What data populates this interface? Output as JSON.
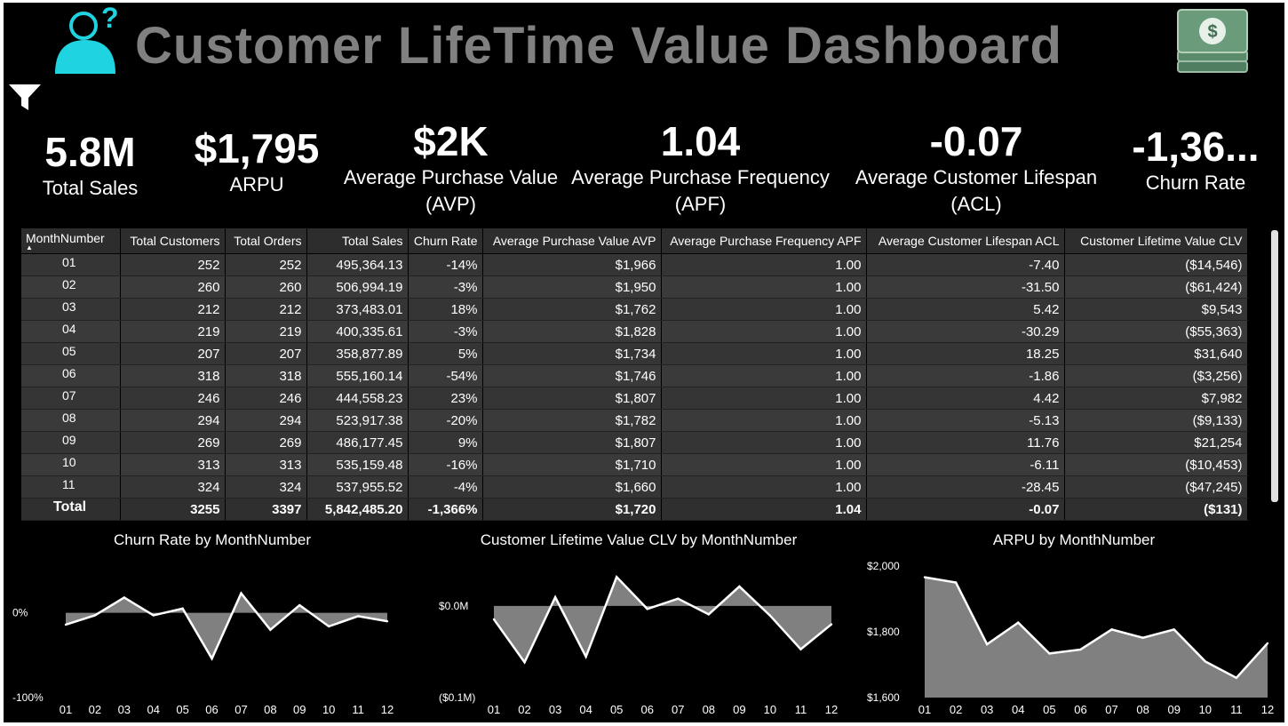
{
  "title": "Customer LifeTime Value Dashboard",
  "kpis": [
    {
      "value": "5.8M",
      "label": "Total Sales"
    },
    {
      "value": "$1,795",
      "label": "ARPU"
    },
    {
      "value": "$2K",
      "label": "Average Purchase Value",
      "label2": "(AVP)"
    },
    {
      "value": "1.04",
      "label": "Average Purchase Frequency",
      "label2": "(APF)"
    },
    {
      "value": "-0.07",
      "label": "Average Customer Lifespan",
      "label2": "(ACL)"
    },
    {
      "value": "-1,36...",
      "label": "Churn Rate"
    }
  ],
  "table": {
    "headers": [
      "MonthNumber",
      "Total Customers",
      "Total Orders",
      "Total Sales",
      "Churn Rate",
      "Average Purchase Value AVP",
      "Average Purchase Frequency APF",
      "Average Customer Lifespan ACL",
      "Customer Lifetime Value CLV"
    ],
    "rows": [
      [
        "01",
        "252",
        "252",
        "495,364.13",
        "-14%",
        "$1,966",
        "1.00",
        "-7.40",
        "($14,546)"
      ],
      [
        "02",
        "260",
        "260",
        "506,994.19",
        "-3%",
        "$1,950",
        "1.00",
        "-31.50",
        "($61,424)"
      ],
      [
        "03",
        "212",
        "212",
        "373,483.01",
        "18%",
        "$1,762",
        "1.00",
        "5.42",
        "$9,543"
      ],
      [
        "04",
        "219",
        "219",
        "400,335.61",
        "-3%",
        "$1,828",
        "1.00",
        "-30.29",
        "($55,363)"
      ],
      [
        "05",
        "207",
        "207",
        "358,877.89",
        "5%",
        "$1,734",
        "1.00",
        "18.25",
        "$31,640"
      ],
      [
        "06",
        "318",
        "318",
        "555,160.14",
        "-54%",
        "$1,746",
        "1.00",
        "-1.86",
        "($3,256)"
      ],
      [
        "07",
        "246",
        "246",
        "444,558.23",
        "23%",
        "$1,807",
        "1.00",
        "4.42",
        "$7,982"
      ],
      [
        "08",
        "294",
        "294",
        "523,917.38",
        "-20%",
        "$1,782",
        "1.00",
        "-5.13",
        "($9,133)"
      ],
      [
        "09",
        "269",
        "269",
        "486,177.45",
        "9%",
        "$1,807",
        "1.00",
        "11.76",
        "$21,254"
      ],
      [
        "10",
        "313",
        "313",
        "535,159.48",
        "-16%",
        "$1,710",
        "1.00",
        "-6.11",
        "($10,453)"
      ],
      [
        "11",
        "324",
        "324",
        "537,955.52",
        "-4%",
        "$1,660",
        "1.00",
        "-28.45",
        "($47,245)"
      ]
    ],
    "total": [
      "Total",
      "3255",
      "3397",
      "5,842,485.20",
      "-1,366%",
      "$1,720",
      "1.04",
      "-0.07",
      "($131)"
    ]
  },
  "chart_data": [
    {
      "type": "area",
      "title": "Churn Rate by MonthNumber",
      "categories": [
        "01",
        "02",
        "03",
        "04",
        "05",
        "06",
        "07",
        "08",
        "09",
        "10",
        "11",
        "12"
      ],
      "values": [
        -14,
        -3,
        18,
        -3,
        5,
        -54,
        23,
        -20,
        9,
        -16,
        -4,
        -10
      ],
      "y_ticks": [
        "0%",
        "-100%"
      ],
      "ylim": [
        -100,
        30
      ]
    },
    {
      "type": "area",
      "title": "Customer Lifetime Value CLV by MonthNumber",
      "categories": [
        "01",
        "02",
        "03",
        "04",
        "05",
        "06",
        "07",
        "08",
        "09",
        "10",
        "11",
        "12"
      ],
      "values": [
        -14546,
        -61424,
        9543,
        -55363,
        31640,
        -3256,
        7982,
        -9133,
        21254,
        -10453,
        -47245,
        -20000
      ],
      "y_ticks": [
        "$0.0M",
        "($0.1M)"
      ],
      "ylim": [
        -100000,
        30000
      ]
    },
    {
      "type": "area",
      "title": "ARPU by MonthNumber",
      "categories": [
        "01",
        "02",
        "03",
        "04",
        "05",
        "06",
        "07",
        "08",
        "09",
        "10",
        "11",
        "12"
      ],
      "values": [
        1966,
        1950,
        1762,
        1828,
        1734,
        1746,
        1807,
        1782,
        1807,
        1710,
        1660,
        1765
      ],
      "y_ticks": [
        "$2,000",
        "$1,800",
        "$1,600"
      ],
      "ylim": [
        1600,
        2000
      ]
    }
  ],
  "colors": {
    "background": "#000000",
    "area_fill": "#808080",
    "line": "#ffffff",
    "accent": "#1fd3e0"
  },
  "icons": [
    "person-question-icon",
    "filter-icon",
    "money-stack-icon"
  ]
}
